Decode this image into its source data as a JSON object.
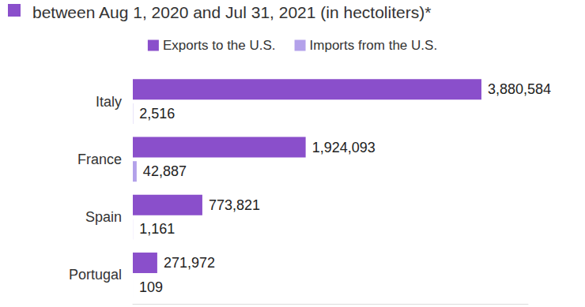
{
  "chart_data": {
    "type": "bar",
    "orientation": "horizontal",
    "title": "between Aug 1, 2020 and Jul 31, 2021 (in hectoliters)*",
    "categories": [
      "Italy",
      "France",
      "Spain",
      "Portugal"
    ],
    "series": [
      {
        "name": "Exports to the U.S.",
        "color": "#8a4fcb",
        "values": [
          3880584,
          1924093,
          773821,
          271972
        ],
        "value_labels": [
          "3,880,584",
          "1,924,093",
          "773,821",
          "271,972"
        ]
      },
      {
        "name": "Imports from the U.S.",
        "color": "#b3a1ea",
        "values": [
          2516,
          42887,
          1161,
          109
        ],
        "value_labels": [
          "2,516",
          "42,887",
          "1,161",
          "109"
        ]
      }
    ],
    "xlim": [
      0,
      4400000
    ],
    "data_labels": true,
    "tick_labels": "y",
    "grid": false,
    "legend": "top"
  }
}
